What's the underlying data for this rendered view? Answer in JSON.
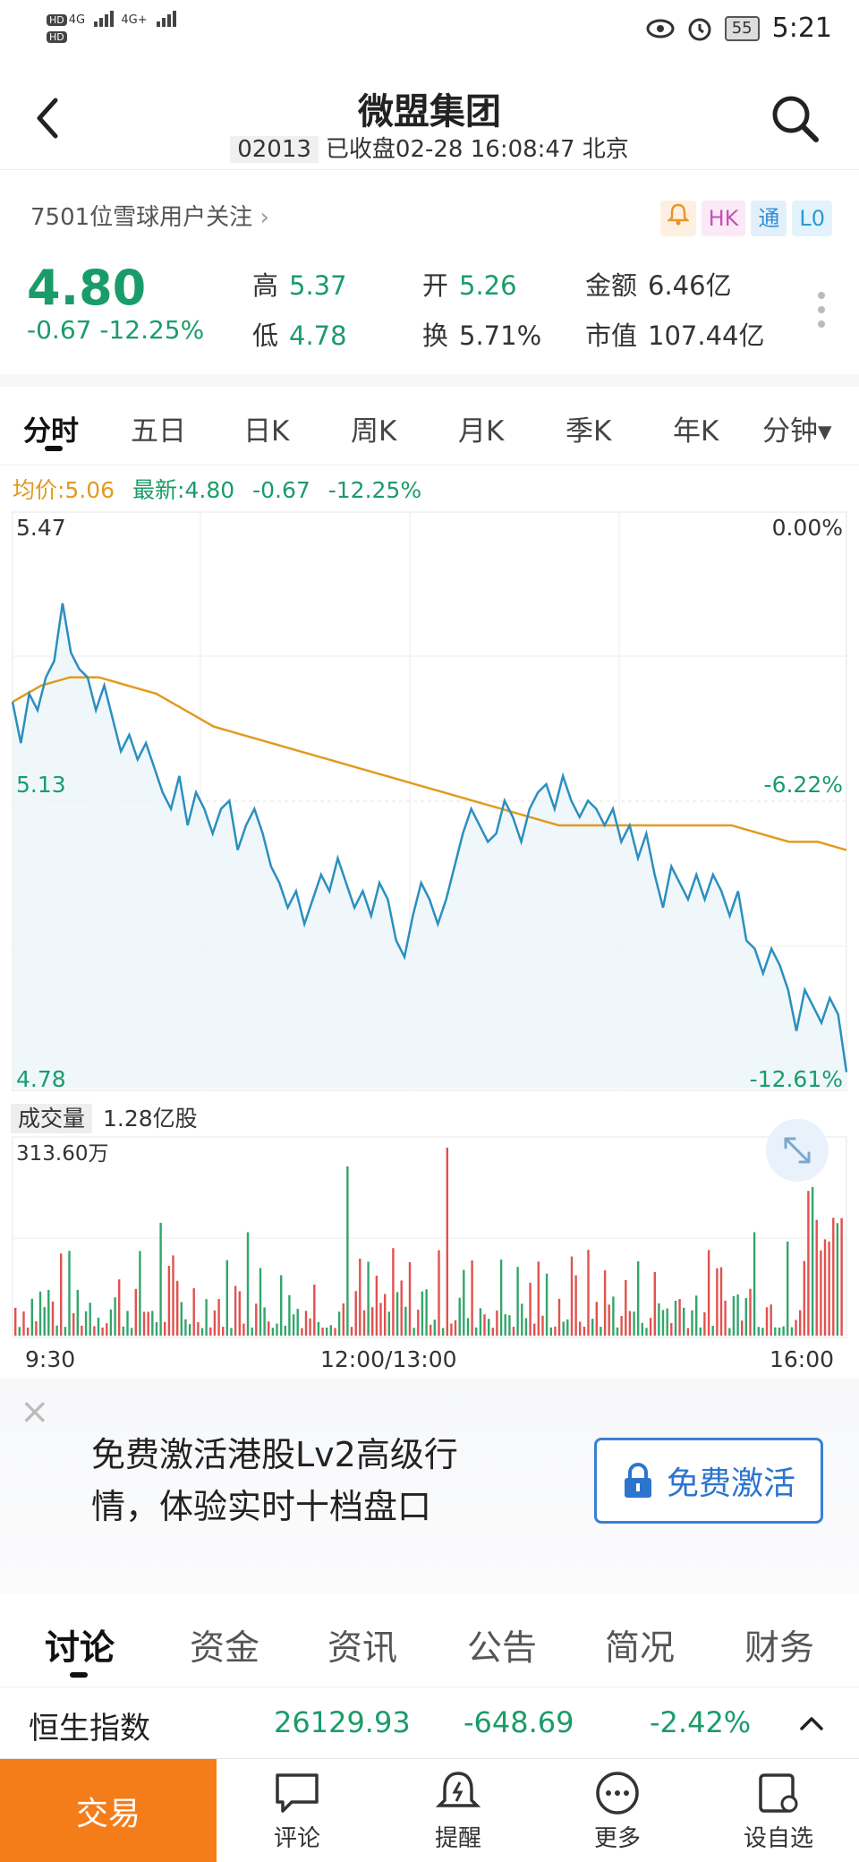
{
  "status_bar": {
    "left_hd1": "HD",
    "left_hd2": "HD",
    "net1": "4G",
    "net2": "4G+",
    "battery": "55",
    "time": "5:21"
  },
  "header": {
    "title": "微盟集团",
    "code": "02013",
    "status": "已收盘02-28 16:08:47 北京"
  },
  "follow": {
    "text": "7501位雪球用户关注",
    "tags": [
      "HK",
      "通",
      "L0"
    ]
  },
  "quote": {
    "price": "4.80",
    "change": "-0.67 -12.25%",
    "high_label": "高",
    "high": "5.37",
    "low_label": "低",
    "low": "4.78",
    "open_label": "开",
    "open": "5.26",
    "turnover_label": "换",
    "turnover": "5.71%",
    "amount_label": "金额",
    "amount": "6.46亿",
    "mktcap_label": "市值",
    "mktcap": "107.44亿"
  },
  "chart_tabs": [
    "分时",
    "五日",
    "日K",
    "周K",
    "月K",
    "季K",
    "年K",
    "分钟▾"
  ],
  "legend": {
    "avg": "均价:5.06",
    "latest": "最新:4.80",
    "chg": "-0.67",
    "pct": "-12.25%"
  },
  "colors": {
    "green": "#1a9c6a",
    "orange": "#e29a1f",
    "price_line": "#2b8fbf",
    "vol_red": "#e0524f",
    "vol_green": "#34a56b",
    "trade": "#f47d1a",
    "link_blue": "#2d74cf"
  },
  "chart_data": {
    "type": "line",
    "title": "",
    "xlabel": "",
    "ylabel": "",
    "y_left_ticks": [
      "5.47",
      "5.13",
      "4.78"
    ],
    "y_right_ticks": [
      "0.00%",
      "-6.22%",
      "-12.61%"
    ],
    "ylim": [
      4.78,
      5.47
    ],
    "x_ticks": [
      "9:30",
      "12:00/13:00",
      "16:00"
    ],
    "series": [
      {
        "values": [
          5.25,
          5.2,
          5.26,
          5.24,
          5.28,
          5.3,
          5.37,
          5.31,
          5.29,
          5.28,
          5.24,
          5.27,
          5.23,
          5.19,
          5.21,
          5.18,
          5.2,
          5.17,
          5.14,
          5.12,
          5.16,
          5.1,
          5.14,
          5.12,
          5.09,
          5.12,
          5.13,
          5.07,
          5.1,
          5.12,
          5.09,
          5.05,
          5.03,
          5.0,
          5.02,
          4.98,
          5.01,
          5.04,
          5.02,
          5.06,
          5.03,
          5.0,
          5.02,
          4.99,
          5.03,
          5.01,
          4.96,
          4.94,
          4.99,
          5.03,
          5.01,
          4.98,
          5.01,
          5.05,
          5.09,
          5.12,
          5.1,
          5.08,
          5.09,
          5.13,
          5.11,
          5.08,
          5.12,
          5.14,
          5.15,
          5.12,
          5.16,
          5.13,
          5.11,
          5.13,
          5.12,
          5.1,
          5.12,
          5.08,
          5.1,
          5.06,
          5.09,
          5.04,
          5.0,
          5.05,
          5.03,
          5.01,
          5.04,
          5.01,
          5.04,
          5.02,
          4.99,
          5.02,
          4.96,
          4.95,
          4.92,
          4.95,
          4.93,
          4.9,
          4.85,
          4.9,
          4.88,
          4.86,
          4.89,
          4.87,
          4.8
        ]
      },
      {
        "values": [
          5.25,
          5.27,
          5.28,
          5.28,
          5.27,
          5.26,
          5.24,
          5.22,
          5.21,
          5.2,
          5.19,
          5.18,
          5.17,
          5.16,
          5.15,
          5.14,
          5.13,
          5.12,
          5.11,
          5.1,
          5.1,
          5.1,
          5.1,
          5.1,
          5.1,
          5.1,
          5.09,
          5.08,
          5.08,
          5.07
        ]
      }
    ]
  },
  "volume": {
    "label": "成交量",
    "total": "1.28亿股",
    "max_tick": "313.60万"
  },
  "promo": {
    "text": "免费激活港股Lv2高级行情，体验实时十档盘口",
    "button": "免费激活"
  },
  "sections": [
    "讨论",
    "资金",
    "资讯",
    "公告",
    "简况",
    "财务"
  ],
  "index_bar": {
    "name": "恒生指数",
    "value": "26129.93",
    "change": "-648.69",
    "pct": "-2.42%"
  },
  "bottom_nav": {
    "trade": "交易",
    "items": [
      "评论",
      "提醒",
      "更多",
      "设自选"
    ]
  }
}
